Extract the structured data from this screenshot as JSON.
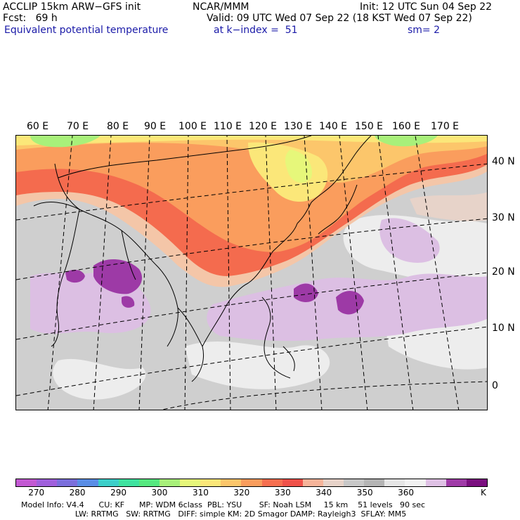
{
  "header": {
    "model": "ACCLIP 15km ARW−GFS init",
    "fcst": "Fcst:   69 h",
    "field": "Equivalent potential temperature",
    "center": "NCAR/MMM",
    "valid": "Valid: 09 UTC Wed 07 Sep 22 (18 KST Wed 07 Sep 22)",
    "level": "at k−index =  51",
    "init": "Init: 12 UTC Sun 04 Sep 22",
    "smooth": "sm= 2"
  },
  "axes": {
    "lon_labels": [
      "60 E",
      "70 E",
      "80 E",
      "90 E",
      "100 E",
      "110 E",
      "120 E",
      "130 E",
      "140 E",
      "150 E",
      "160 E",
      "170 E"
    ],
    "lat_labels": [
      "40 N",
      "30 N",
      "20 N",
      "10 N",
      "0"
    ]
  },
  "colorbar": {
    "unit": "K",
    "tick_labels": [
      "270",
      "280",
      "290",
      "300",
      "310",
      "320",
      "330",
      "340",
      "350",
      "360"
    ],
    "colors": [
      "#c359d3",
      "#a060dc",
      "#7b6fdc",
      "#5a8ee6",
      "#3ccfc9",
      "#3fe3a0",
      "#56e880",
      "#a8f07a",
      "#e6f77a",
      "#fbe779",
      "#fcc66b",
      "#fa9d5d",
      "#f76f50",
      "#f0524a",
      "#f6b49a",
      "#e7d3c9",
      "#c8c8c8",
      "#b5b5b5",
      "#e6e6e6",
      "#f2f2f2",
      "#dfc1e5",
      "#a03ba8",
      "#7a0f7f"
    ]
  },
  "footer": {
    "line1": "Model Info: V4.4      CU: KF      MP: WDM 6class  PBL: YSU       SF: Noah LSM     15 km    51 levels   90 sec",
    "line2": "                      LW: RRTMG   SW: RRTMG   DIFF: simple KM: 2D Smagor DAMP: Rayleigh3  SFLAY: MM5"
  }
}
